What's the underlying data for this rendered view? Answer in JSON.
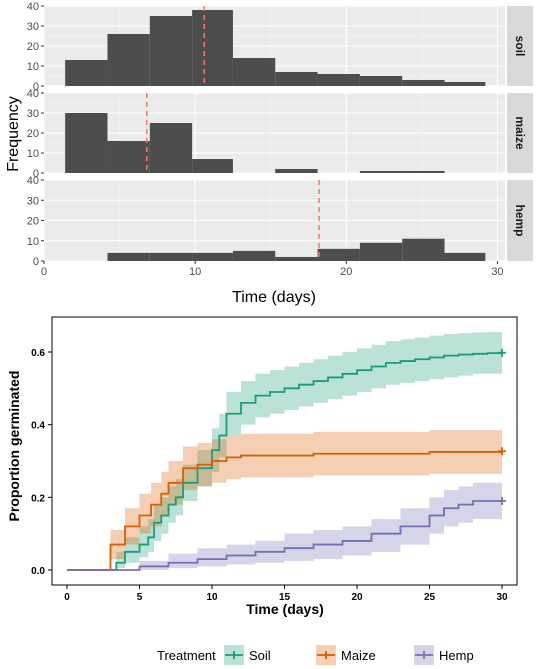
{
  "chart_data": [
    {
      "type": "bar",
      "subtype": "faceted-histogram",
      "xlabel": "Time (days)",
      "ylabel": "Frequency",
      "xlim": [
        0,
        30.5
      ],
      "ylim": [
        0,
        40
      ],
      "x_ticks": [
        "0",
        "10",
        "20",
        "30"
      ],
      "y_ticks": [
        "0",
        "10",
        "20",
        "30",
        "40"
      ],
      "bin_edges": [
        1.4,
        4.2,
        7.0,
        9.8,
        12.5,
        15.3,
        18.1,
        20.9,
        23.7,
        26.5,
        29.2
      ],
      "grid": true,
      "panels": [
        {
          "label": "soil",
          "counts": [
            13,
            26,
            35,
            38,
            14,
            7,
            6,
            5,
            3,
            2
          ],
          "mean_line": 10.6
        },
        {
          "label": "maize",
          "counts": [
            30,
            16,
            25,
            7,
            0,
            2,
            0,
            1,
            1,
            0
          ],
          "mean_line": 6.8
        },
        {
          "label": "hemp",
          "counts": [
            0,
            4,
            4,
            4,
            5,
            2,
            6,
            9,
            11,
            4
          ],
          "mean_line": 18.2
        }
      ],
      "colors": {
        "bars": "#4d4d4d",
        "mean_line": "#f8766d",
        "panel_bg": "#ebebeb",
        "strip_bg": "#d9d9d9"
      }
    },
    {
      "type": "line",
      "subtype": "step-survival-curves-with-confidence-bands",
      "xlabel": "Time (days)",
      "ylabel": "Proportion germinated",
      "xlim": [
        0,
        30
      ],
      "ylim": [
        0,
        0.65
      ],
      "x_ticks": [
        "0",
        "5",
        "10",
        "15",
        "20",
        "25",
        "30"
      ],
      "y_ticks": [
        "0.0",
        "0.2",
        "0.4",
        "0.6"
      ],
      "grid": false,
      "legend_title": "Treatment",
      "legend_position": "bottom",
      "series": [
        {
          "name": "Soil",
          "color": "#1b9e77",
          "x": [
            0,
            3.4,
            4,
            5,
            5.6,
            6,
            6.5,
            7,
            7.5,
            8,
            9,
            10,
            10.5,
            11,
            12,
            13,
            14,
            15,
            16,
            17,
            18,
            19,
            20,
            21,
            22,
            23,
            24,
            25,
            26,
            27,
            28,
            29,
            30
          ],
          "y": [
            0,
            0.02,
            0.05,
            0.07,
            0.09,
            0.13,
            0.15,
            0.18,
            0.2,
            0.24,
            0.28,
            0.33,
            0.37,
            0.43,
            0.46,
            0.48,
            0.49,
            0.5,
            0.51,
            0.52,
            0.53,
            0.54,
            0.55,
            0.56,
            0.57,
            0.575,
            0.58,
            0.585,
            0.59,
            0.593,
            0.595,
            0.597,
            0.598
          ],
          "upper": [
            0,
            0.05,
            0.09,
            0.12,
            0.14,
            0.18,
            0.2,
            0.23,
            0.25,
            0.29,
            0.33,
            0.39,
            0.43,
            0.49,
            0.52,
            0.54,
            0.55,
            0.56,
            0.57,
            0.58,
            0.59,
            0.6,
            0.61,
            0.62,
            0.63,
            0.635,
            0.64,
            0.645,
            0.65,
            0.652,
            0.654,
            0.655,
            0.655
          ],
          "lower": [
            0,
            0.005,
            0.02,
            0.035,
            0.05,
            0.08,
            0.1,
            0.13,
            0.15,
            0.19,
            0.23,
            0.27,
            0.31,
            0.37,
            0.4,
            0.42,
            0.43,
            0.44,
            0.45,
            0.46,
            0.47,
            0.48,
            0.49,
            0.5,
            0.51,
            0.515,
            0.52,
            0.525,
            0.53,
            0.535,
            0.54,
            0.54,
            0.54
          ]
        },
        {
          "name": "Maize",
          "color": "#d95f02",
          "x": [
            0,
            3,
            4,
            5,
            5.8,
            6.5,
            7,
            8,
            9,
            10,
            11,
            12,
            17,
            25,
            30
          ],
          "y": [
            0,
            0.07,
            0.12,
            0.15,
            0.18,
            0.21,
            0.24,
            0.28,
            0.29,
            0.3,
            0.31,
            0.315,
            0.32,
            0.325,
            0.327
          ],
          "upper": [
            0,
            0.11,
            0.17,
            0.21,
            0.24,
            0.27,
            0.3,
            0.34,
            0.35,
            0.36,
            0.37,
            0.375,
            0.38,
            0.385,
            0.385
          ],
          "lower": [
            0,
            0.03,
            0.07,
            0.1,
            0.12,
            0.15,
            0.18,
            0.22,
            0.23,
            0.24,
            0.25,
            0.255,
            0.26,
            0.265,
            0.27
          ]
        },
        {
          "name": "Hemp",
          "color": "#7570b3",
          "x": [
            0,
            3,
            5,
            7,
            9,
            11,
            13,
            15,
            17,
            19,
            21,
            23,
            25,
            26,
            27,
            28,
            29,
            30
          ],
          "y": [
            0,
            0.0,
            0.01,
            0.02,
            0.03,
            0.04,
            0.05,
            0.06,
            0.07,
            0.08,
            0.1,
            0.12,
            0.15,
            0.17,
            0.18,
            0.19,
            0.19,
            0.19
          ],
          "upper": [
            0,
            0.0,
            0.025,
            0.045,
            0.06,
            0.07,
            0.08,
            0.1,
            0.11,
            0.12,
            0.14,
            0.17,
            0.2,
            0.22,
            0.23,
            0.24,
            0.24,
            0.24
          ],
          "lower": [
            0,
            0.0,
            0.0,
            0.005,
            0.01,
            0.015,
            0.02,
            0.025,
            0.03,
            0.04,
            0.05,
            0.07,
            0.1,
            0.12,
            0.13,
            0.14,
            0.14,
            0.14
          ]
        }
      ]
    }
  ]
}
